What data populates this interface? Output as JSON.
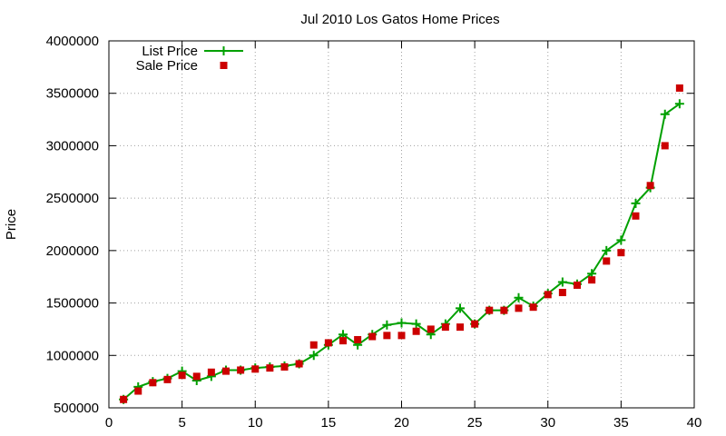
{
  "chart_data": {
    "type": "line",
    "title": "Jul 2010 Los Gatos Home Prices",
    "xlabel": "",
    "ylabel": "Price",
    "xlim": [
      0,
      40
    ],
    "ylim": [
      500000,
      4000000
    ],
    "xticks": [
      0,
      5,
      10,
      15,
      20,
      25,
      30,
      35,
      40
    ],
    "yticks": [
      500000,
      1000000,
      1500000,
      2000000,
      2500000,
      3000000,
      3500000,
      4000000
    ],
    "xtick_labels": [
      "0",
      "5",
      "10",
      "15",
      "20",
      "25",
      "30",
      "35",
      "40"
    ],
    "ytick_labels": [
      "500000",
      "1000000",
      "1500000",
      "2000000",
      "2500000",
      "3000000",
      "3500000",
      "4000000"
    ],
    "grid": true,
    "legend_position": "top-left",
    "series": [
      {
        "name": "List Price",
        "style": "linespoints",
        "marker": "plus",
        "color": "#00a000",
        "x": [
          1,
          2,
          3,
          4,
          5,
          6,
          7,
          8,
          9,
          10,
          11,
          12,
          13,
          14,
          15,
          16,
          17,
          18,
          19,
          20,
          21,
          22,
          23,
          24,
          25,
          26,
          27,
          28,
          29,
          30,
          31,
          32,
          33,
          34,
          35,
          36,
          37,
          38,
          39
        ],
        "y": [
          580000,
          700000,
          750000,
          780000,
          850000,
          760000,
          800000,
          860000,
          860000,
          880000,
          890000,
          900000,
          920000,
          1000000,
          1100000,
          1200000,
          1100000,
          1200000,
          1290000,
          1310000,
          1300000,
          1200000,
          1300000,
          1450000,
          1300000,
          1430000,
          1430000,
          1550000,
          1470000,
          1590000,
          1700000,
          1680000,
          1780000,
          2000000,
          2100000,
          2450000,
          2600000,
          3300000,
          3400000
        ]
      },
      {
        "name": "Sale Price",
        "style": "points",
        "marker": "square",
        "color": "#cc0000",
        "x": [
          1,
          2,
          3,
          4,
          5,
          6,
          7,
          8,
          9,
          10,
          11,
          12,
          13,
          14,
          15,
          16,
          17,
          18,
          19,
          20,
          21,
          22,
          23,
          24,
          25,
          26,
          27,
          28,
          29,
          30,
          31,
          32,
          33,
          34,
          35,
          36,
          37,
          38,
          39
        ],
        "y": [
          580000,
          660000,
          740000,
          770000,
          810000,
          800000,
          840000,
          850000,
          860000,
          870000,
          880000,
          890000,
          920000,
          1100000,
          1120000,
          1140000,
          1150000,
          1180000,
          1190000,
          1190000,
          1230000,
          1250000,
          1270000,
          1270000,
          1300000,
          1430000,
          1430000,
          1450000,
          1460000,
          1580000,
          1600000,
          1670000,
          1720000,
          1900000,
          1980000,
          2330000,
          2620000,
          3000000,
          3550000
        ]
      }
    ]
  }
}
